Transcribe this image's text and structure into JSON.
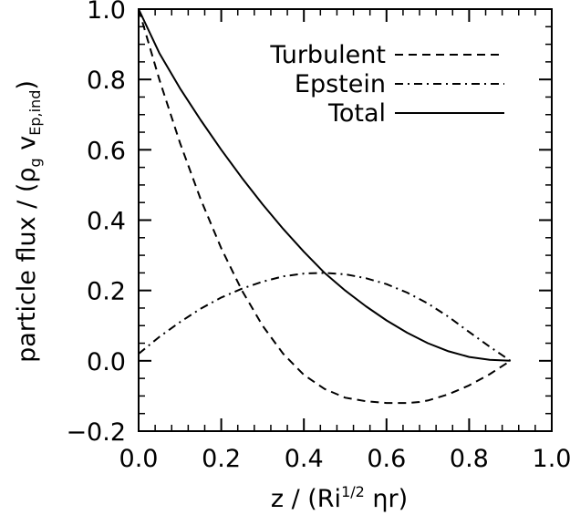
{
  "chart_data": {
    "type": "line",
    "xlim": [
      0.0,
      1.0
    ],
    "ylim": [
      -0.2,
      1.0
    ],
    "xticks": [
      "0.0",
      "0.2",
      "0.4",
      "0.6",
      "0.8",
      "1.0"
    ],
    "yticks": [
      "−0.2",
      "0.0",
      "0.2",
      "0.4",
      "0.6",
      "0.8",
      "1.0"
    ],
    "xlabel": {
      "pre": "z / (Ri",
      "sup": "1/2",
      "post": " ηr)"
    },
    "ylabel": {
      "pre": "particle flux / (ρ",
      "sub1": "g",
      "mid": " v",
      "sub2": "Ep,ind",
      "post": ")"
    },
    "legend_position": "top-right",
    "grid": false,
    "series": [
      {
        "name": "Turbulent",
        "style": "dashed",
        "x": [
          0.0,
          0.05,
          0.1,
          0.15,
          0.2,
          0.25,
          0.3,
          0.35,
          0.4,
          0.45,
          0.5,
          0.55,
          0.6,
          0.65,
          0.68,
          0.7,
          0.75,
          0.8,
          0.85,
          0.9
        ],
        "y": [
          1.0,
          0.8,
          0.62,
          0.46,
          0.32,
          0.2,
          0.1,
          0.02,
          -0.04,
          -0.08,
          -0.105,
          -0.115,
          -0.12,
          -0.12,
          -0.117,
          -0.113,
          -0.095,
          -0.07,
          -0.038,
          0.0
        ]
      },
      {
        "name": "Epstein",
        "style": "dashdot",
        "x": [
          0.0,
          0.05,
          0.1,
          0.15,
          0.2,
          0.25,
          0.3,
          0.35,
          0.4,
          0.45,
          0.5,
          0.55,
          0.6,
          0.65,
          0.7,
          0.75,
          0.8,
          0.85,
          0.9
        ],
        "y": [
          0.02,
          0.068,
          0.11,
          0.148,
          0.18,
          0.205,
          0.225,
          0.24,
          0.248,
          0.25,
          0.246,
          0.235,
          0.218,
          0.194,
          0.163,
          0.125,
          0.082,
          0.04,
          0.0
        ]
      },
      {
        "name": "Total",
        "style": "solid",
        "x": [
          0.0,
          0.05,
          0.1,
          0.15,
          0.2,
          0.25,
          0.3,
          0.35,
          0.4,
          0.45,
          0.5,
          0.55,
          0.6,
          0.65,
          0.7,
          0.75,
          0.8,
          0.85,
          0.9
        ],
        "y": [
          1.0,
          0.875,
          0.775,
          0.685,
          0.6,
          0.52,
          0.445,
          0.375,
          0.31,
          0.25,
          0.2,
          0.155,
          0.115,
          0.08,
          0.05,
          0.027,
          0.011,
          0.003,
          0.0
        ]
      }
    ]
  }
}
